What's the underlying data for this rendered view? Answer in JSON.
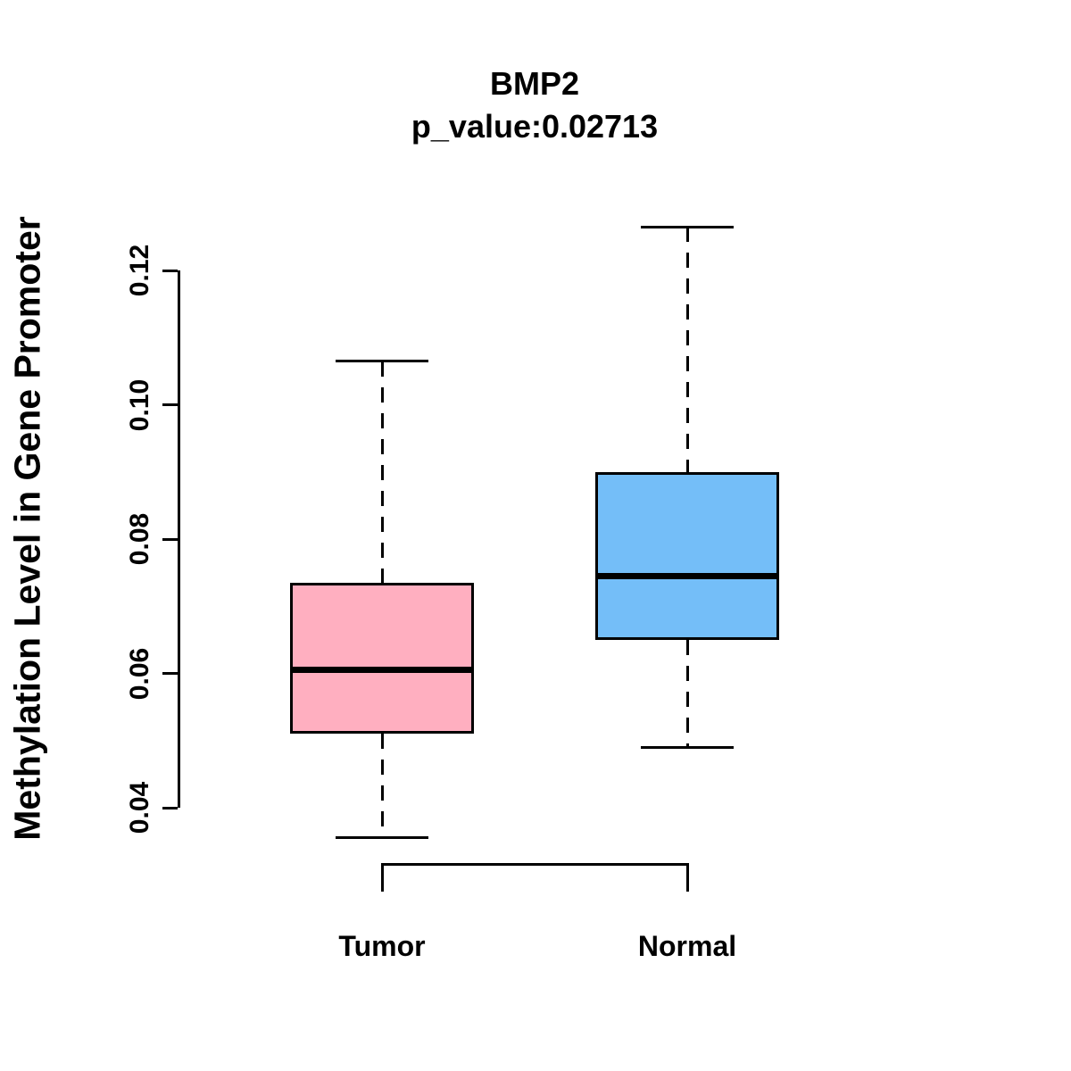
{
  "title": "BMP2",
  "subtitle": "p_value:0.02713",
  "p_value": 0.02713,
  "chart_data": {
    "type": "boxplot",
    "title": "BMP2",
    "subtitle": "p_value:0.02713",
    "ylabel": "Methylation Level in Gene Promoter",
    "xlabel": "",
    "categories": [
      "Tumor",
      "Normal"
    ],
    "y_tick_labels": [
      "0.04",
      "0.06",
      "0.08",
      "0.10",
      "0.12"
    ],
    "y_tick_values": [
      0.04,
      0.06,
      0.08,
      0.1,
      0.12
    ],
    "axis_range": [
      0.04,
      0.12
    ],
    "grid": false,
    "legend": "none",
    "series": [
      {
        "name": "Tumor",
        "fill_color": "#FFAFC0",
        "whisker_low": 0.0355,
        "q1": 0.051,
        "median": 0.0605,
        "q3": 0.0735,
        "whisker_high": 0.1065
      },
      {
        "name": "Normal",
        "fill_color": "#74BEF8",
        "whisker_low": 0.049,
        "q1": 0.065,
        "median": 0.0745,
        "q3": 0.09,
        "whisker_high": 0.1265
      }
    ],
    "line_color": "#000000"
  }
}
